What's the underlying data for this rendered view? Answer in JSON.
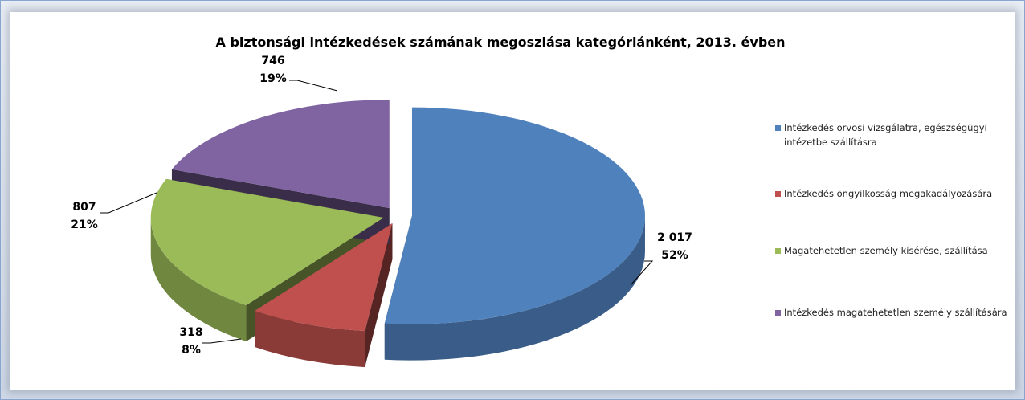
{
  "chart_data": {
    "type": "pie3d",
    "title": "A biztonsági intézkedések számának megoszlása kategóriánként, 2013. évben",
    "categories": [
      "Intézkedés orvosi vizsgálatra, egészségügyi intézetbe szállításra",
      "Intézkedés öngyilkosság megakadályozására",
      "Magatehetetlen személy kísérése, szállítása",
      "Intézkedés magatehetetlen személy szállítására"
    ],
    "values": [
      2017,
      318,
      807,
      746
    ],
    "value_labels": [
      "2 017",
      "318",
      "807",
      "746"
    ],
    "percentages": [
      52,
      8,
      21,
      19
    ],
    "percentage_labels": [
      "52%",
      "8%",
      "21%",
      "19%"
    ],
    "colors": [
      "#4f81bd",
      "#c0504d",
      "#9bbb59",
      "#8064a2"
    ],
    "legend": "right"
  }
}
